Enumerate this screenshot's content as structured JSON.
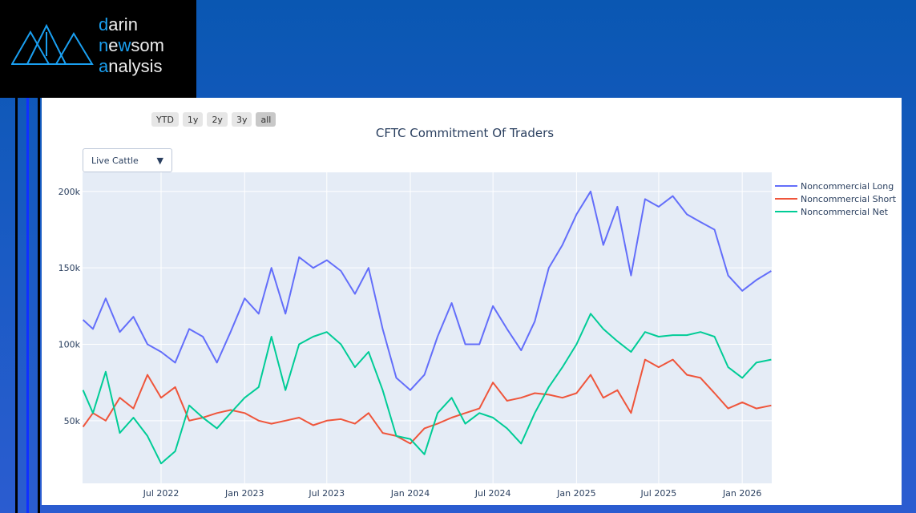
{
  "logo": {
    "line1_initial": "d",
    "line1_rest": "arin",
    "line2_initial": "n",
    "line2_mid": "e",
    "line2_w": "w",
    "line2_rest": "som",
    "line3_initial": "a",
    "line3_rest": "nalysis"
  },
  "range_selector": [
    "YTD",
    "1y",
    "2y",
    "3y",
    "all"
  ],
  "range_active": "all",
  "dropdown": {
    "selected": "Live Cattle",
    "arrow": "▼"
  },
  "colors": {
    "long": "#636efa",
    "short": "#ef553b",
    "net": "#00cc96"
  },
  "chart_data": {
    "type": "line",
    "title": "CFTC Commitment Of Traders",
    "xlabel": "",
    "ylabel": "",
    "ylim": [
      9000,
      212500
    ],
    "yticks": [
      {
        "v": 50000,
        "label": "50k"
      },
      {
        "v": 100000,
        "label": "100k"
      },
      {
        "v": 150000,
        "label": "150k"
      },
      {
        "v": 200000,
        "label": "200k"
      }
    ],
    "xrange": [
      "2022-01-09",
      "2026-03-07"
    ],
    "xticks": [
      {
        "d": "2022-07-01",
        "label": "Jul 2022"
      },
      {
        "d": "2023-01-01",
        "label": "Jan 2023"
      },
      {
        "d": "2023-07-01",
        "label": "Jul 2023"
      },
      {
        "d": "2024-01-01",
        "label": "Jan 2024"
      },
      {
        "d": "2024-07-01",
        "label": "Jul 2024"
      },
      {
        "d": "2025-01-01",
        "label": "Jan 2025"
      },
      {
        "d": "2025-07-01",
        "label": "Jul 2025"
      },
      {
        "d": "2026-01-01",
        "label": "Jan 2026"
      }
    ],
    "legend_position": "right",
    "x": [
      "2022-01-10",
      "2022-02-01",
      "2022-03-01",
      "2022-04-01",
      "2022-05-01",
      "2022-06-01",
      "2022-07-01",
      "2022-08-01",
      "2022-09-01",
      "2022-10-01",
      "2022-11-01",
      "2022-12-01",
      "2023-01-01",
      "2023-02-01",
      "2023-03-01",
      "2023-04-01",
      "2023-05-01",
      "2023-06-01",
      "2023-07-01",
      "2023-08-01",
      "2023-09-01",
      "2023-10-01",
      "2023-11-01",
      "2023-12-01",
      "2024-01-01",
      "2024-02-01",
      "2024-03-01",
      "2024-04-01",
      "2024-05-01",
      "2024-06-01",
      "2024-07-01",
      "2024-08-01",
      "2024-09-01",
      "2024-10-01",
      "2024-11-01",
      "2024-12-01",
      "2025-01-01",
      "2025-02-01",
      "2025-03-01",
      "2025-04-01",
      "2025-05-01",
      "2025-06-01",
      "2025-07-01",
      "2025-08-01",
      "2025-09-01",
      "2025-10-01",
      "2025-11-01",
      "2025-12-01",
      "2026-01-01",
      "2026-02-01",
      "2026-03-06"
    ],
    "series": [
      {
        "key": "long",
        "name": "Noncommercial Long",
        "values": [
          116000,
          110000,
          130000,
          108000,
          118000,
          100000,
          95000,
          88000,
          110000,
          105000,
          88000,
          108000,
          130000,
          120000,
          150000,
          120000,
          157000,
          150000,
          155000,
          148000,
          133000,
          150000,
          110000,
          78000,
          70000,
          80000,
          105000,
          127000,
          100000,
          100000,
          125000,
          110000,
          96000,
          115000,
          150000,
          165000,
          185000,
          200000,
          165000,
          190000,
          145000,
          195000,
          190000,
          197000,
          185000,
          180000,
          175000,
          145000,
          135000,
          142000,
          148000
        ]
      },
      {
        "key": "short",
        "name": "Noncommercial Short",
        "values": [
          46000,
          55000,
          50000,
          65000,
          58000,
          80000,
          65000,
          72000,
          50000,
          52000,
          55000,
          57000,
          55000,
          50000,
          48000,
          50000,
          52000,
          47000,
          50000,
          51000,
          48000,
          55000,
          42000,
          40000,
          35000,
          45000,
          48000,
          52000,
          55000,
          58000,
          75000,
          63000,
          65000,
          68000,
          67000,
          65000,
          68000,
          80000,
          65000,
          70000,
          55000,
          90000,
          85000,
          90000,
          80000,
          78000,
          68000,
          58000,
          62000,
          58000,
          60000
        ]
      },
      {
        "key": "net",
        "name": "Noncommercial Net",
        "values": [
          70000,
          55000,
          82000,
          42000,
          52000,
          40000,
          22000,
          30000,
          60000,
          52000,
          45000,
          55000,
          65000,
          72000,
          105000,
          70000,
          100000,
          105000,
          108000,
          100000,
          85000,
          95000,
          70000,
          40000,
          38000,
          28000,
          55000,
          65000,
          48000,
          55000,
          52000,
          45000,
          35000,
          55000,
          72000,
          85000,
          100000,
          120000,
          110000,
          102000,
          95000,
          108000,
          105000,
          106000,
          106000,
          108000,
          105000,
          85000,
          78000,
          88000,
          90000
        ]
      }
    ]
  }
}
